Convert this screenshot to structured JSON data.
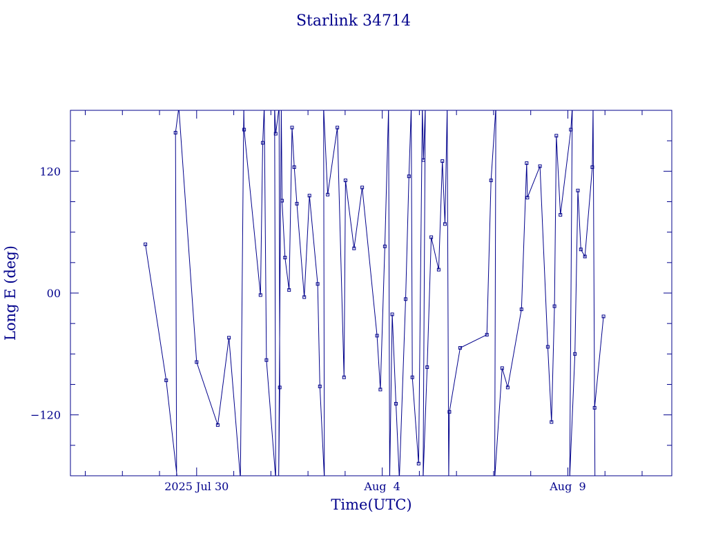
{
  "chart_data": {
    "type": "line",
    "title": "Starlink 34714",
    "xlabel": "Time(UTC)",
    "ylabel": "Long E (deg)",
    "x_unit": "days",
    "x_ticks": [
      {
        "value": 0,
        "label": "2025 Jul 30"
      },
      {
        "value": 5,
        "label": "Aug  4"
      },
      {
        "value": 10,
        "label": "Aug  9"
      }
    ],
    "xlim": [
      -3.4,
      12.8
    ],
    "y_ticks": [
      {
        "value": 120,
        "label": "120"
      },
      {
        "value": 0,
        "label": "00"
      },
      {
        "value": -120,
        "label": "−120"
      }
    ],
    "ylim": [
      -180,
      180
    ],
    "grid": false,
    "color": "#00008b",
    "series": [
      {
        "name": "",
        "points": [
          [
            -1.38,
            48
          ],
          [
            -0.82,
            -86
          ],
          [
            -0.52,
            -183
          ],
          [
            -0.54,
            -183
          ],
          [
            -0.57,
            158
          ],
          [
            -0.48,
            183
          ],
          [
            0.0,
            -68
          ],
          [
            0.57,
            -130
          ],
          [
            0.87,
            -44
          ],
          [
            1.18,
            -183
          ],
          [
            1.27,
            183
          ],
          [
            1.28,
            161
          ],
          [
            1.72,
            -2
          ],
          [
            1.78,
            148
          ],
          [
            1.82,
            183
          ],
          [
            1.88,
            -66
          ],
          [
            2.13,
            -183
          ],
          [
            2.1,
            183
          ],
          [
            2.13,
            157
          ],
          [
            2.22,
            183
          ],
          [
            2.24,
            -93
          ],
          [
            2.21,
            -183
          ],
          [
            2.28,
            183
          ],
          [
            2.3,
            91
          ],
          [
            2.38,
            35
          ],
          [
            2.49,
            3
          ],
          [
            2.57,
            163
          ],
          [
            2.63,
            124
          ],
          [
            2.7,
            88
          ],
          [
            2.9,
            -4
          ],
          [
            3.04,
            96
          ],
          [
            3.26,
            9
          ],
          [
            3.32,
            -92
          ],
          [
            3.44,
            -183
          ],
          [
            3.42,
            183
          ],
          [
            3.53,
            97
          ],
          [
            3.79,
            163
          ],
          [
            3.97,
            -83
          ],
          [
            4.01,
            111
          ],
          [
            4.24,
            44
          ],
          [
            4.46,
            104
          ],
          [
            4.86,
            -42
          ],
          [
            4.95,
            -95
          ],
          [
            5.07,
            46
          ],
          [
            5.17,
            183
          ],
          [
            5.2,
            -183
          ],
          [
            5.27,
            -21
          ],
          [
            5.37,
            -109
          ],
          [
            5.46,
            -183
          ],
          [
            5.63,
            -6
          ],
          [
            5.72,
            115
          ],
          [
            5.78,
            183
          ],
          [
            5.81,
            -83
          ],
          [
            5.98,
            -168
          ],
          [
            6.08,
            183
          ],
          [
            6.11,
            131
          ],
          [
            6.16,
            183
          ],
          [
            6.1,
            -183
          ],
          [
            6.21,
            -73
          ],
          [
            6.32,
            55
          ],
          [
            6.52,
            23
          ],
          [
            6.62,
            130
          ],
          [
            6.69,
            68
          ],
          [
            6.75,
            183
          ],
          [
            6.79,
            -183
          ],
          [
            6.81,
            -117
          ],
          [
            7.1,
            -54
          ],
          [
            7.82,
            -41
          ],
          [
            7.93,
            111
          ],
          [
            8.06,
            183
          ],
          [
            8.03,
            -183
          ],
          [
            8.23,
            -74
          ],
          [
            8.38,
            -93
          ],
          [
            8.75,
            -16
          ],
          [
            8.89,
            128
          ],
          [
            8.91,
            94
          ],
          [
            9.25,
            125
          ],
          [
            9.46,
            -53
          ],
          [
            9.56,
            -127
          ],
          [
            9.64,
            -13
          ],
          [
            9.69,
            155
          ],
          [
            9.8,
            77
          ],
          [
            10.08,
            161
          ],
          [
            10.12,
            183
          ],
          [
            10.05,
            -183
          ],
          [
            10.19,
            -60
          ],
          [
            10.27,
            101
          ],
          [
            10.35,
            43
          ],
          [
            10.46,
            36
          ],
          [
            10.66,
            124
          ],
          [
            10.68,
            183
          ],
          [
            10.73,
            -183
          ],
          [
            10.72,
            -113
          ],
          [
            10.96,
            -23
          ]
        ]
      }
    ]
  }
}
